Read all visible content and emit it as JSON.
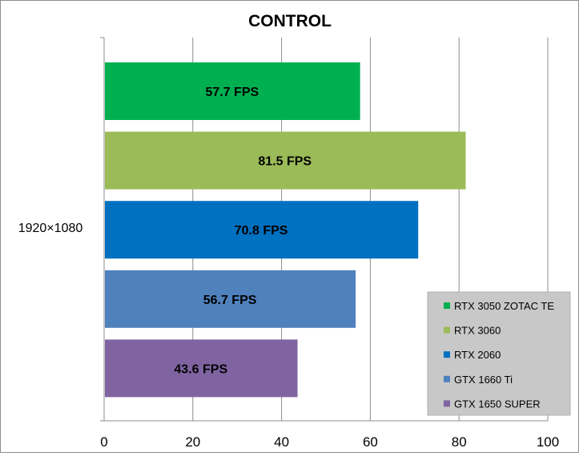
{
  "chart_data": {
    "type": "bar",
    "orientation": "horizontal",
    "title": "CONTROL",
    "categories": [
      "1920×1080"
    ],
    "series": [
      {
        "name": "RTX 3050 ZOTAC TE",
        "values": [
          57.7
        ],
        "label": "57.7 FPS",
        "color": "#00b050"
      },
      {
        "name": "RTX 3060",
        "values": [
          81.5
        ],
        "label": "81.5 FPS",
        "color": "#9bbb59"
      },
      {
        "name": "RTX 2060",
        "values": [
          70.8
        ],
        "label": "70.8 FPS",
        "color": "#0070c0"
      },
      {
        "name": "GTX 1660 Ti",
        "values": [
          56.7
        ],
        "label": "56.7 FPS",
        "color": "#4f81bd"
      },
      {
        "name": "GTX 1650 SUPER",
        "values": [
          43.6
        ],
        "label": "43.6 FPS",
        "color": "#8064a2"
      }
    ],
    "xlim": [
      0,
      100
    ],
    "xticks": [
      "0",
      "20",
      "40",
      "60",
      "80",
      "100"
    ],
    "grid": true,
    "legend_position": "bottom-right"
  }
}
